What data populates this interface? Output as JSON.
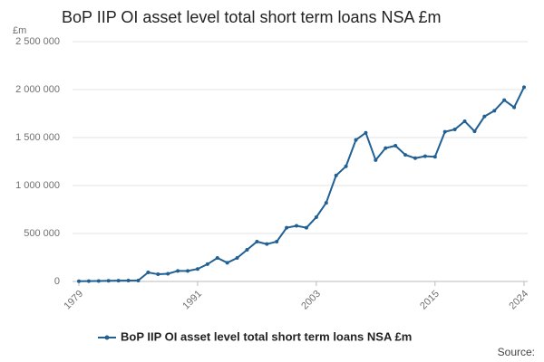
{
  "chart_data": {
    "type": "line",
    "title": "BoP IIP OI asset level total short term loans NSA £m",
    "y_label": "£m",
    "source": "Source:",
    "x": [
      1979,
      1980,
      1981,
      1982,
      1983,
      1984,
      1985,
      1986,
      1987,
      1988,
      1989,
      1990,
      1991,
      1992,
      1993,
      1994,
      1995,
      1996,
      1997,
      1998,
      1999,
      2000,
      2001,
      2002,
      2003,
      2004,
      2005,
      2006,
      2007,
      2008,
      2009,
      2010,
      2011,
      2012,
      2013,
      2014,
      2015,
      2016,
      2017,
      2018,
      2019,
      2020,
      2021,
      2022,
      2023,
      2024
    ],
    "series": [
      {
        "name": "BoP IIP OI asset level total short term loans NSA £m",
        "color": "#206095",
        "values": [
          2000,
          3000,
          5000,
          7000,
          8000,
          9000,
          10000,
          94000,
          75000,
          80000,
          110000,
          110000,
          130000,
          180000,
          245000,
          195000,
          245000,
          330000,
          415000,
          390000,
          415000,
          560000,
          580000,
          560000,
          670000,
          820000,
          1105000,
          1200000,
          1475000,
          1550000,
          1265000,
          1390000,
          1415000,
          1320000,
          1285000,
          1305000,
          1300000,
          1560000,
          1585000,
          1670000,
          1565000,
          1720000,
          1780000,
          1890000,
          1815000,
          2025000
        ]
      }
    ],
    "xlim": [
      1979,
      2024
    ],
    "xticks": [
      1979,
      1991,
      2003,
      2015,
      2024
    ],
    "ylim": [
      0,
      2500000
    ],
    "yticks": [
      0,
      {
        "value": 500000,
        "label": "500 000"
      },
      {
        "value": 1000000,
        "label": "1 000 000"
      },
      {
        "value": 1500000,
        "label": "1 500 000"
      },
      {
        "value": 2000000,
        "label": "2 000 000"
      },
      {
        "value": 2500000,
        "label": "2 500 000"
      }
    ],
    "grid": true
  }
}
